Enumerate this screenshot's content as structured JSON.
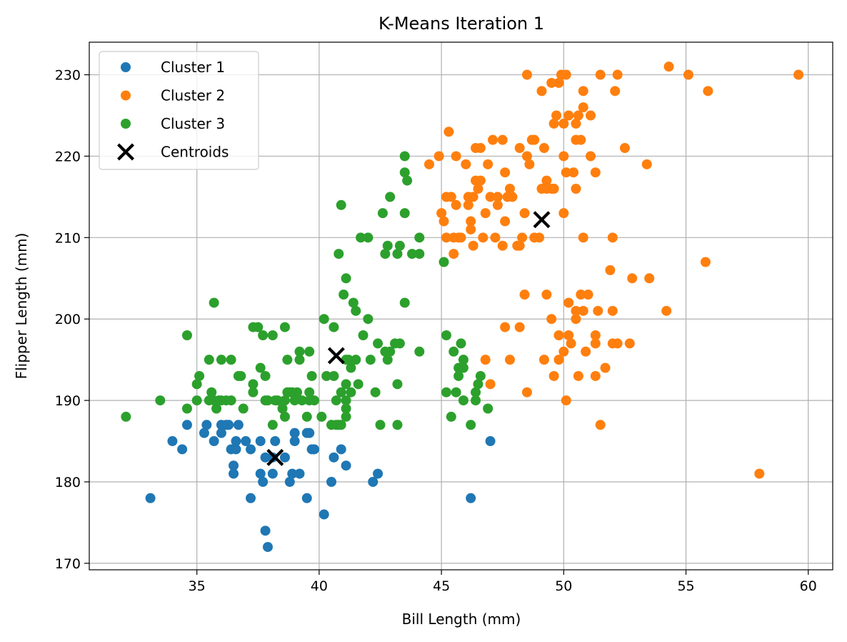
{
  "chart_data": {
    "type": "scatter",
    "title": "K-Means Iteration 1",
    "xlabel": "Bill Length (mm)",
    "ylabel": "Flipper Length (mm)",
    "xlim": [
      30.6,
      61.0
    ],
    "ylim": [
      169.2,
      234.0
    ],
    "xticks": [
      35,
      40,
      45,
      50,
      55,
      60
    ],
    "yticks": [
      170,
      180,
      190,
      200,
      210,
      220,
      230
    ],
    "grid": true,
    "legend_position": "top-left",
    "series": [
      {
        "name": "Cluster 1",
        "color": "#1f77b4",
        "marker": "circle",
        "points": [
          [
            33.1,
            178
          ],
          [
            34.0,
            185
          ],
          [
            34.4,
            184
          ],
          [
            34.6,
            187
          ],
          [
            35.3,
            186
          ],
          [
            35.4,
            187
          ],
          [
            35.7,
            185
          ],
          [
            36.0,
            187
          ],
          [
            36.0,
            186
          ],
          [
            36.2,
            187
          ],
          [
            36.3,
            187
          ],
          [
            36.4,
            184
          ],
          [
            36.5,
            182
          ],
          [
            36.5,
            181
          ],
          [
            36.6,
            184
          ],
          [
            36.6,
            185
          ],
          [
            36.7,
            187
          ],
          [
            37.0,
            185
          ],
          [
            37.2,
            184
          ],
          [
            37.2,
            178
          ],
          [
            37.6,
            185
          ],
          [
            37.6,
            181
          ],
          [
            37.7,
            180
          ],
          [
            37.8,
            183
          ],
          [
            37.8,
            174
          ],
          [
            37.9,
            172
          ],
          [
            38.1,
            183
          ],
          [
            38.1,
            181
          ],
          [
            38.2,
            185
          ],
          [
            38.6,
            183
          ],
          [
            38.8,
            180
          ],
          [
            38.9,
            181
          ],
          [
            39.0,
            185
          ],
          [
            39.0,
            186
          ],
          [
            39.2,
            181
          ],
          [
            39.5,
            178
          ],
          [
            39.5,
            186
          ],
          [
            39.6,
            186
          ],
          [
            39.7,
            184
          ],
          [
            39.8,
            184
          ],
          [
            40.2,
            176
          ],
          [
            40.5,
            180
          ],
          [
            40.6,
            183
          ],
          [
            40.9,
            184
          ],
          [
            41.1,
            182
          ],
          [
            42.2,
            180
          ],
          [
            42.4,
            181
          ],
          [
            46.2,
            178
          ],
          [
            47.0,
            185
          ]
        ]
      },
      {
        "name": "Cluster 2",
        "color": "#ff7f0e",
        "marker": "circle",
        "points": [
          [
            44.5,
            219
          ],
          [
            44.9,
            220
          ],
          [
            45.0,
            213
          ],
          [
            45.1,
            212
          ],
          [
            45.2,
            215
          ],
          [
            45.2,
            210
          ],
          [
            45.3,
            223
          ],
          [
            45.4,
            215
          ],
          [
            45.5,
            210
          ],
          [
            45.5,
            208
          ],
          [
            45.6,
            220
          ],
          [
            45.6,
            214
          ],
          [
            45.7,
            210
          ],
          [
            45.8,
            210
          ],
          [
            46.0,
            219
          ],
          [
            46.1,
            214
          ],
          [
            46.1,
            215
          ],
          [
            46.2,
            211
          ],
          [
            46.2,
            212
          ],
          [
            46.3,
            209
          ],
          [
            46.3,
            215
          ],
          [
            46.4,
            217
          ],
          [
            46.4,
            221
          ],
          [
            46.5,
            216
          ],
          [
            46.6,
            221
          ],
          [
            46.6,
            217
          ],
          [
            46.7,
            210
          ],
          [
            46.8,
            213
          ],
          [
            46.9,
            219
          ],
          [
            47.0,
            215
          ],
          [
            47.1,
            222
          ],
          [
            47.3,
            214
          ],
          [
            47.3,
            215
          ],
          [
            47.5,
            222
          ],
          [
            47.6,
            212
          ],
          [
            47.6,
            218
          ],
          [
            47.7,
            215
          ],
          [
            47.8,
            216
          ],
          [
            47.9,
            215
          ],
          [
            48.2,
            209
          ],
          [
            48.2,
            221
          ],
          [
            48.3,
            210
          ],
          [
            48.5,
            220
          ],
          [
            48.6,
            219
          ],
          [
            48.7,
            222
          ],
          [
            48.8,
            210
          ],
          [
            48.8,
            222
          ],
          [
            49.0,
            210
          ],
          [
            49.1,
            216
          ],
          [
            49.2,
            221
          ],
          [
            49.3,
            217
          ],
          [
            49.3,
            216
          ],
          [
            49.5,
            216
          ],
          [
            49.6,
            224
          ],
          [
            49.6,
            216
          ],
          [
            49.7,
            225
          ],
          [
            49.8,
            229
          ],
          [
            50.0,
            224
          ],
          [
            50.0,
            213
          ],
          [
            50.0,
            220
          ],
          [
            50.1,
            218
          ],
          [
            50.2,
            225
          ],
          [
            50.4,
            218
          ],
          [
            50.5,
            224
          ],
          [
            50.5,
            222
          ],
          [
            50.5,
            216
          ],
          [
            50.6,
            225
          ],
          [
            50.7,
            222
          ],
          [
            50.8,
            226
          ],
          [
            50.8,
            228
          ],
          [
            51.1,
            220
          ],
          [
            51.1,
            225
          ],
          [
            51.3,
            218
          ],
          [
            51.5,
            230
          ],
          [
            52.1,
            228
          ],
          [
            52.2,
            230
          ],
          [
            52.5,
            221
          ],
          [
            53.4,
            219
          ],
          [
            54.3,
            231
          ],
          [
            55.1,
            230
          ],
          [
            55.9,
            228
          ],
          [
            59.6,
            230
          ],
          [
            48.5,
            230
          ],
          [
            49.1,
            228
          ],
          [
            49.5,
            229
          ],
          [
            49.9,
            230
          ],
          [
            48.4,
            213
          ],
          [
            50.1,
            230
          ],
          [
            46.8,
            195
          ],
          [
            47.0,
            192
          ],
          [
            47.6,
            199
          ],
          [
            47.8,
            195
          ],
          [
            48.2,
            199
          ],
          [
            48.4,
            203
          ],
          [
            48.5,
            191
          ],
          [
            49.2,
            195
          ],
          [
            49.3,
            203
          ],
          [
            49.5,
            200
          ],
          [
            49.6,
            193
          ],
          [
            49.8,
            198
          ],
          [
            49.8,
            195
          ],
          [
            50.0,
            196
          ],
          [
            50.1,
            190
          ],
          [
            50.2,
            198
          ],
          [
            50.2,
            202
          ],
          [
            50.3,
            197
          ],
          [
            50.5,
            201
          ],
          [
            50.5,
            200
          ],
          [
            50.6,
            193
          ],
          [
            50.7,
            203
          ],
          [
            50.8,
            201
          ],
          [
            50.9,
            196
          ],
          [
            51.0,
            203
          ],
          [
            51.3,
            197
          ],
          [
            51.3,
            198
          ],
          [
            51.3,
            193
          ],
          [
            51.4,
            201
          ],
          [
            51.5,
            187
          ],
          [
            51.7,
            194
          ],
          [
            51.9,
            206
          ],
          [
            52.0,
            201
          ],
          [
            52.0,
            197
          ],
          [
            52.0,
            210
          ],
          [
            52.2,
            197
          ],
          [
            52.7,
            197
          ],
          [
            52.8,
            205
          ],
          [
            53.5,
            205
          ],
          [
            54.2,
            201
          ],
          [
            55.8,
            207
          ],
          [
            58.0,
            181
          ],
          [
            50.8,
            210
          ],
          [
            47.5,
            209
          ],
          [
            47.2,
            210
          ],
          [
            48.1,
            209
          ]
        ]
      },
      {
        "name": "Cluster 3",
        "color": "#2ca02c",
        "marker": "circle",
        "points": [
          [
            32.1,
            188
          ],
          [
            33.5,
            190
          ],
          [
            34.6,
            198
          ],
          [
            34.6,
            189
          ],
          [
            35.0,
            190
          ],
          [
            35.0,
            192
          ],
          [
            35.1,
            193
          ],
          [
            35.5,
            190
          ],
          [
            35.5,
            195
          ],
          [
            35.6,
            191
          ],
          [
            35.7,
            202
          ],
          [
            35.7,
            190
          ],
          [
            35.8,
            189
          ],
          [
            35.9,
            190
          ],
          [
            36.0,
            190
          ],
          [
            36.0,
            195
          ],
          [
            36.2,
            190
          ],
          [
            36.4,
            190
          ],
          [
            36.4,
            195
          ],
          [
            36.7,
            193
          ],
          [
            36.8,
            193
          ],
          [
            36.9,
            189
          ],
          [
            37.3,
            199
          ],
          [
            37.3,
            191
          ],
          [
            37.3,
            192
          ],
          [
            37.5,
            199
          ],
          [
            37.6,
            194
          ],
          [
            37.7,
            198
          ],
          [
            37.8,
            190
          ],
          [
            37.8,
            193
          ],
          [
            37.9,
            190
          ],
          [
            38.1,
            198
          ],
          [
            38.1,
            187
          ],
          [
            38.2,
            190
          ],
          [
            38.3,
            190
          ],
          [
            38.5,
            189
          ],
          [
            38.6,
            188
          ],
          [
            38.6,
            190
          ],
          [
            38.6,
            199
          ],
          [
            38.7,
            195
          ],
          [
            38.7,
            191
          ],
          [
            38.8,
            191
          ],
          [
            38.9,
            191
          ],
          [
            39.0,
            190
          ],
          [
            39.1,
            191
          ],
          [
            39.2,
            196
          ],
          [
            39.2,
            195
          ],
          [
            39.3,
            190
          ],
          [
            39.5,
            188
          ],
          [
            39.6,
            191
          ],
          [
            39.6,
            196
          ],
          [
            39.6,
            190
          ],
          [
            39.7,
            193
          ],
          [
            39.8,
            190
          ],
          [
            40.1,
            188
          ],
          [
            40.2,
            200
          ],
          [
            40.3,
            193
          ],
          [
            40.5,
            187
          ],
          [
            40.6,
            193
          ],
          [
            40.6,
            199
          ],
          [
            40.7,
            187
          ],
          [
            40.7,
            190
          ],
          [
            40.8,
            208
          ],
          [
            40.9,
            214
          ],
          [
            40.9,
            187
          ],
          [
            40.9,
            191
          ],
          [
            41.0,
            203
          ],
          [
            41.1,
            192
          ],
          [
            41.1,
            190
          ],
          [
            41.1,
            188
          ],
          [
            41.1,
            189
          ],
          [
            41.1,
            205
          ],
          [
            41.3,
            194
          ],
          [
            41.3,
            191
          ],
          [
            41.4,
            202
          ],
          [
            41.5,
            195
          ],
          [
            41.5,
            201
          ],
          [
            41.6,
            192
          ],
          [
            41.7,
            210
          ],
          [
            41.8,
            198
          ],
          [
            42.0,
            210
          ],
          [
            42.0,
            200
          ],
          [
            42.1,
            195
          ],
          [
            42.3,
            191
          ],
          [
            42.4,
            197
          ],
          [
            42.5,
            187
          ],
          [
            42.6,
            213
          ],
          [
            42.7,
            208
          ],
          [
            42.7,
            196
          ],
          [
            42.8,
            195
          ],
          [
            42.8,
            209
          ],
          [
            42.9,
            196
          ],
          [
            42.9,
            215
          ],
          [
            43.1,
            197
          ],
          [
            43.2,
            208
          ],
          [
            43.2,
            192
          ],
          [
            43.2,
            187
          ],
          [
            43.3,
            197
          ],
          [
            43.3,
            209
          ],
          [
            43.5,
            218
          ],
          [
            43.5,
            202
          ],
          [
            43.5,
            213
          ],
          [
            43.5,
            220
          ],
          [
            43.6,
            217
          ],
          [
            43.8,
            208
          ],
          [
            44.1,
            196
          ],
          [
            44.1,
            208
          ],
          [
            44.1,
            210
          ],
          [
            45.1,
            207
          ],
          [
            45.2,
            198
          ],
          [
            45.2,
            191
          ],
          [
            45.4,
            188
          ],
          [
            45.5,
            196
          ],
          [
            45.6,
            191
          ],
          [
            45.7,
            194
          ],
          [
            45.7,
            193
          ],
          [
            45.8,
            197
          ],
          [
            45.9,
            194
          ],
          [
            45.9,
            195
          ],
          [
            45.9,
            190
          ],
          [
            46.2,
            187
          ],
          [
            46.4,
            190
          ],
          [
            46.4,
            191
          ],
          [
            46.5,
            192
          ],
          [
            46.6,
            193
          ],
          [
            46.9,
            189
          ],
          [
            41.1,
            195
          ],
          [
            41.2,
            195
          ],
          [
            40.8,
            187
          ]
        ]
      },
      {
        "name": "Centroids",
        "color": "#000000",
        "marker": "x",
        "points": [
          [
            38.2,
            183
          ],
          [
            40.7,
            195.5
          ],
          [
            49.1,
            212.2
          ]
        ]
      }
    ]
  }
}
